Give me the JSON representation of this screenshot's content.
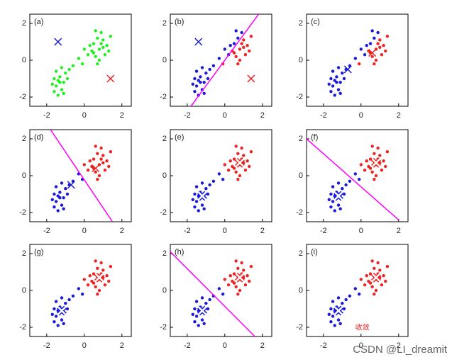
{
  "chart_data": [
    {
      "type": "scatter",
      "label": "(a)",
      "xlim": [
        -2.9,
        2.5
      ],
      "ylim": [
        -2.5,
        2.5
      ],
      "xticks": [
        -2,
        0,
        2
      ],
      "yticks": [
        -2,
        0,
        2
      ],
      "centroid_style": "plain",
      "series": [
        {
          "color": "#22ee22",
          "x": [
            -1.5,
            -1.3,
            -1.1,
            -1.6,
            -1.2,
            -1.0,
            -1.4,
            -1.7,
            -0.9,
            -1.3,
            -1.5,
            -1.1,
            -0.8,
            -1.6,
            -1.2,
            -1.4,
            -0.6,
            -0.3,
            -0.1,
            0.2,
            0.5,
            0.8,
            1.0,
            0.6,
            1.2,
            0.9,
            0.4,
            0.7,
            1.1,
            0.3,
            1.4,
            0.8,
            0.6,
            1.0,
            0.5,
            1.3,
            0.9,
            0.0,
            0.7
          ],
          "y": [
            -1.4,
            -0.9,
            -1.2,
            -1.0,
            -1.6,
            -0.7,
            -1.9,
            -1.3,
            -1.0,
            -1.2,
            -0.6,
            -1.8,
            -0.5,
            -1.7,
            -0.4,
            -1.1,
            -0.3,
            0.1,
            -0.2,
            0.3,
            0.9,
            0.6,
            1.1,
            0.2,
            0.8,
            1.5,
            0.5,
            1.2,
            0.3,
            0.8,
            1.3,
            0.0,
            1.6,
            0.7,
            0.4,
            0.5,
            0.9,
            0.6,
            -0.2
          ]
        }
      ],
      "centroids": [
        {
          "color": "#1a1ad8",
          "x": -1.4,
          "y": 1.0
        },
        {
          "color": "#ee2222",
          "x": 1.4,
          "y": -1.0
        }
      ]
    },
    {
      "type": "scatter",
      "label": "(b)",
      "xlim": [
        -2.9,
        2.5
      ],
      "ylim": [
        -2.5,
        2.5
      ],
      "xticks": [
        -2,
        0,
        2
      ],
      "yticks": [
        -2,
        0,
        2
      ],
      "centroid_style": "plain",
      "series": [
        {
          "color": "#1a1ad8",
          "x": [
            -1.5,
            -1.3,
            -1.1,
            -1.6,
            -1.2,
            -1.0,
            -1.4,
            -1.7,
            -0.9,
            -1.3,
            -1.5,
            -1.1,
            -0.8,
            -1.6,
            -1.2,
            -1.4,
            -0.6,
            -0.3,
            0.2,
            0.5,
            0.9,
            0.7,
            0.3,
            0.6,
            0.0
          ],
          "y": [
            -1.4,
            -0.9,
            -1.2,
            -1.0,
            -1.6,
            -0.7,
            -1.9,
            -1.3,
            -1.0,
            -1.2,
            -0.6,
            -1.8,
            -0.5,
            -1.7,
            -0.4,
            -1.1,
            -0.3,
            0.1,
            0.3,
            0.9,
            1.5,
            1.2,
            0.8,
            1.6,
            0.6
          ]
        },
        {
          "color": "#ee2222",
          "x": [
            -0.1,
            0.8,
            1.0,
            0.6,
            1.2,
            0.4,
            1.1,
            1.4,
            0.8,
            1.0,
            0.5,
            1.3,
            0.9,
            0.7
          ],
          "y": [
            -0.2,
            0.6,
            1.1,
            0.2,
            0.8,
            0.5,
            0.3,
            1.3,
            0.0,
            0.7,
            0.4,
            0.5,
            0.9,
            -0.2
          ]
        }
      ],
      "centroids": [
        {
          "color": "#1a1ad8",
          "x": -1.4,
          "y": 1.0
        },
        {
          "color": "#ee2222",
          "x": 1.4,
          "y": -1.0
        }
      ],
      "boundary": {
        "color": "#ff00ff",
        "x": [
          -1.8,
          1.8
        ],
        "y": [
          -2.5,
          2.5
        ]
      }
    },
    {
      "type": "scatter",
      "label": "(c)",
      "xlim": [
        -2.9,
        2.5
      ],
      "ylim": [
        -2.5,
        2.5
      ],
      "xticks": [
        -2,
        0,
        2
      ],
      "yticks": [
        -2,
        0,
        2
      ],
      "centroid_style": "plain",
      "series": [
        {
          "color": "#1a1ad8",
          "x": [
            -1.5,
            -1.3,
            -1.1,
            -1.6,
            -1.2,
            -1.0,
            -1.4,
            -1.7,
            -0.9,
            -1.3,
            -1.5,
            -1.1,
            -0.8,
            -1.6,
            -1.2,
            -1.4,
            -0.6,
            -0.3,
            0.2,
            0.5,
            0.9,
            0.7,
            0.3,
            0.6,
            0.0
          ],
          "y": [
            -1.4,
            -0.9,
            -1.2,
            -1.0,
            -1.6,
            -0.7,
            -1.9,
            -1.3,
            -1.0,
            -1.2,
            -0.6,
            -1.8,
            -0.5,
            -1.7,
            -0.4,
            -1.1,
            -0.3,
            0.1,
            0.3,
            0.9,
            1.5,
            1.2,
            0.8,
            1.6,
            0.6
          ]
        },
        {
          "color": "#ee2222",
          "x": [
            -0.1,
            0.8,
            1.0,
            0.6,
            1.2,
            0.4,
            1.1,
            1.4,
            0.8,
            1.0,
            0.5,
            1.3,
            0.9,
            0.7
          ],
          "y": [
            -0.2,
            0.6,
            1.1,
            0.2,
            0.8,
            0.5,
            0.3,
            1.3,
            0.0,
            0.7,
            0.4,
            0.5,
            0.9,
            -0.2
          ]
        }
      ],
      "centroids": [
        {
          "color": "#1a1ad8",
          "x": -0.7,
          "y": -0.5
        },
        {
          "color": "#ee2222",
          "x": 0.6,
          "y": 0.4
        }
      ]
    },
    {
      "type": "scatter",
      "label": "(d)",
      "xlim": [
        -2.9,
        2.5
      ],
      "ylim": [
        -2.5,
        2.5
      ],
      "xticks": [
        -2,
        0,
        2
      ],
      "yticks": [
        -2,
        0,
        2
      ],
      "centroid_style": "plain",
      "series": [
        {
          "color": "#1a1ad8",
          "x": [
            -1.5,
            -1.3,
            -1.1,
            -1.6,
            -1.2,
            -1.0,
            -1.4,
            -1.7,
            -0.9,
            -1.3,
            -1.5,
            -1.1,
            -0.8,
            -1.6,
            -1.2,
            -1.4,
            -0.6,
            -0.3,
            -0.1
          ],
          "y": [
            -1.4,
            -0.9,
            -1.2,
            -1.0,
            -1.6,
            -0.7,
            -1.9,
            -1.3,
            -1.0,
            -1.2,
            -0.6,
            -1.8,
            -0.5,
            -1.7,
            -0.4,
            -1.1,
            -0.3,
            0.1,
            -0.2
          ]
        },
        {
          "color": "#ee2222",
          "x": [
            0.2,
            0.5,
            0.8,
            1.0,
            0.6,
            1.2,
            0.9,
            0.4,
            0.7,
            1.1,
            0.3,
            1.4,
            0.8,
            0.6,
            1.0,
            0.5,
            1.3,
            0.9,
            0.0,
            0.7
          ],
          "y": [
            0.3,
            0.9,
            0.6,
            1.1,
            0.2,
            0.8,
            1.5,
            0.5,
            1.2,
            0.3,
            0.8,
            1.3,
            0.0,
            1.6,
            0.7,
            0.4,
            0.5,
            0.9,
            0.6,
            -0.2
          ]
        }
      ],
      "centroids": [
        {
          "color": "#1a1ad8",
          "x": -0.7,
          "y": -0.5
        },
        {
          "color": "#ee2222",
          "x": 0.6,
          "y": 0.4
        }
      ],
      "boundary": {
        "color": "#ff00ff",
        "x": [
          -1.8,
          1.5
        ],
        "y": [
          2.5,
          -2.5
        ]
      }
    },
    {
      "type": "scatter",
      "label": "(e)",
      "xlim": [
        -2.9,
        2.5
      ],
      "ylim": [
        -2.5,
        2.5
      ],
      "xticks": [
        -2,
        0,
        2
      ],
      "yticks": [
        -2,
        0,
        2
      ],
      "centroid_style": "outlined",
      "series": [
        {
          "color": "#1a1ad8",
          "x": [
            -1.5,
            -1.3,
            -1.1,
            -1.6,
            -1.2,
            -1.0,
            -1.4,
            -1.7,
            -0.9,
            -1.3,
            -1.5,
            -1.1,
            -0.8,
            -1.6,
            -1.2,
            -1.4,
            -0.6,
            -0.3,
            -0.1
          ],
          "y": [
            -1.4,
            -0.9,
            -1.2,
            -1.0,
            -1.6,
            -0.7,
            -1.9,
            -1.3,
            -1.0,
            -1.2,
            -0.6,
            -1.8,
            -0.5,
            -1.7,
            -0.4,
            -1.1,
            -0.3,
            0.1,
            -0.2
          ]
        },
        {
          "color": "#ee2222",
          "x": [
            0.2,
            0.5,
            0.8,
            1.0,
            0.6,
            1.2,
            0.9,
            0.4,
            0.7,
            1.1,
            0.3,
            1.4,
            0.8,
            0.6,
            1.0,
            0.5,
            1.3,
            0.9,
            0.0,
            0.7
          ],
          "y": [
            0.3,
            0.9,
            0.6,
            1.1,
            0.2,
            0.8,
            1.5,
            0.5,
            1.2,
            0.3,
            0.8,
            1.3,
            0.0,
            1.6,
            0.7,
            0.4,
            0.5,
            0.9,
            0.6,
            -0.2
          ]
        }
      ],
      "centroids": [
        {
          "color": "#1a1ad8",
          "x": -1.2,
          "y": -1.1
        },
        {
          "color": "#ee2222",
          "x": 0.8,
          "y": 0.7
        }
      ]
    },
    {
      "type": "scatter",
      "label": "(f)",
      "xlim": [
        -2.9,
        2.5
      ],
      "ylim": [
        -2.5,
        2.5
      ],
      "xticks": [
        -2,
        0,
        2
      ],
      "yticks": [
        -2,
        0,
        2
      ],
      "centroid_style": "outlined",
      "series": [
        {
          "color": "#1a1ad8",
          "x": [
            -1.5,
            -1.3,
            -1.1,
            -1.6,
            -1.2,
            -1.0,
            -1.4,
            -1.7,
            -0.9,
            -1.3,
            -1.5,
            -1.1,
            -0.8,
            -1.6,
            -1.2,
            -1.4,
            -0.6,
            -0.3,
            -0.1
          ],
          "y": [
            -1.4,
            -0.9,
            -1.2,
            -1.0,
            -1.6,
            -0.7,
            -1.9,
            -1.3,
            -1.0,
            -1.2,
            -0.6,
            -1.8,
            -0.5,
            -1.7,
            -0.4,
            -1.1,
            -0.3,
            0.1,
            -0.2
          ]
        },
        {
          "color": "#ee2222",
          "x": [
            0.2,
            0.5,
            0.8,
            1.0,
            0.6,
            1.2,
            0.9,
            0.4,
            0.7,
            1.1,
            0.3,
            1.4,
            0.8,
            0.6,
            1.0,
            0.5,
            1.3,
            0.9,
            0.0,
            0.7
          ],
          "y": [
            0.3,
            0.9,
            0.6,
            1.1,
            0.2,
            0.8,
            1.5,
            0.5,
            1.2,
            0.3,
            0.8,
            1.3,
            0.0,
            1.6,
            0.7,
            0.4,
            0.5,
            0.9,
            0.6,
            -0.2
          ]
        }
      ],
      "centroids": [
        {
          "color": "#1a1ad8",
          "x": -1.2,
          "y": -1.1
        },
        {
          "color": "#ee2222",
          "x": 0.8,
          "y": 0.7
        }
      ],
      "boundary": {
        "color": "#ff00ff",
        "x": [
          -2.9,
          2.0
        ],
        "y": [
          2.0,
          -2.4
        ]
      }
    },
    {
      "type": "scatter",
      "label": "(g)",
      "xlim": [
        -2.9,
        2.5
      ],
      "ylim": [
        -2.5,
        2.5
      ],
      "xticks": [
        -2,
        0,
        2
      ],
      "yticks": [
        -2,
        0,
        2
      ],
      "centroid_style": "outlined",
      "series": [
        {
          "color": "#1a1ad8",
          "x": [
            -1.5,
            -1.3,
            -1.1,
            -1.6,
            -1.2,
            -1.0,
            -1.4,
            -1.7,
            -0.9,
            -1.3,
            -1.5,
            -1.1,
            -0.8,
            -1.6,
            -1.2,
            -1.4,
            -0.6,
            -0.3,
            -0.1
          ],
          "y": [
            -1.4,
            -0.9,
            -1.2,
            -1.0,
            -1.6,
            -0.7,
            -1.9,
            -1.3,
            -1.0,
            -1.2,
            -0.6,
            -1.8,
            -0.5,
            -1.7,
            -0.4,
            -1.1,
            -0.3,
            0.1,
            -0.2
          ]
        },
        {
          "color": "#ee2222",
          "x": [
            0.2,
            0.5,
            0.8,
            1.0,
            0.6,
            1.2,
            0.9,
            0.4,
            0.7,
            1.1,
            0.3,
            1.4,
            0.8,
            0.6,
            1.0,
            0.5,
            1.3,
            0.9,
            0.0,
            0.7
          ],
          "y": [
            0.3,
            0.9,
            0.6,
            1.1,
            0.2,
            0.8,
            1.5,
            0.5,
            1.2,
            0.3,
            0.8,
            1.3,
            0.0,
            1.6,
            0.7,
            0.4,
            0.5,
            0.9,
            0.6,
            -0.2
          ]
        }
      ],
      "centroids": [
        {
          "color": "#1a1ad8",
          "x": -1.2,
          "y": -1.1
        },
        {
          "color": "#ee2222",
          "x": 0.8,
          "y": 0.7
        }
      ]
    },
    {
      "type": "scatter",
      "label": "(h)",
      "xlim": [
        -2.9,
        2.5
      ],
      "ylim": [
        -2.5,
        2.5
      ],
      "xticks": [
        -2,
        0,
        2
      ],
      "yticks": [
        -2,
        0,
        2
      ],
      "centroid_style": "outlined",
      "series": [
        {
          "color": "#1a1ad8",
          "x": [
            -1.5,
            -1.3,
            -1.1,
            -1.6,
            -1.2,
            -1.0,
            -1.4,
            -1.7,
            -0.9,
            -1.3,
            -1.5,
            -1.1,
            -0.8,
            -1.6,
            -1.2,
            -1.4,
            -0.6,
            -0.3,
            -0.1
          ],
          "y": [
            -1.4,
            -0.9,
            -1.2,
            -1.0,
            -1.6,
            -0.7,
            -1.9,
            -1.3,
            -1.0,
            -1.2,
            -0.6,
            -1.8,
            -0.5,
            -1.7,
            -0.4,
            -1.1,
            -0.3,
            0.1,
            -0.2
          ]
        },
        {
          "color": "#ee2222",
          "x": [
            0.2,
            0.5,
            0.8,
            1.0,
            0.6,
            1.2,
            0.9,
            0.4,
            0.7,
            1.1,
            0.3,
            1.4,
            0.8,
            0.6,
            1.0,
            0.5,
            1.3,
            0.9,
            0.0,
            0.7
          ],
          "y": [
            0.3,
            0.9,
            0.6,
            1.1,
            0.2,
            0.8,
            1.5,
            0.5,
            1.2,
            0.3,
            0.8,
            1.3,
            0.0,
            1.6,
            0.7,
            0.4,
            0.5,
            0.9,
            0.6,
            -0.2
          ]
        }
      ],
      "centroids": [
        {
          "color": "#1a1ad8",
          "x": -1.2,
          "y": -1.1
        },
        {
          "color": "#ee2222",
          "x": 0.8,
          "y": 0.7
        }
      ],
      "boundary": {
        "color": "#ff00ff",
        "x": [
          -2.9,
          1.6
        ],
        "y": [
          2.1,
          -2.5
        ]
      }
    },
    {
      "type": "scatter",
      "label": "(i)",
      "xlim": [
        -2.9,
        2.5
      ],
      "ylim": [
        -2.5,
        2.5
      ],
      "xticks": [
        -2,
        0,
        2
      ],
      "yticks": [
        -2,
        0,
        2
      ],
      "centroid_style": "outlined",
      "series": [
        {
          "color": "#1a1ad8",
          "x": [
            -1.5,
            -1.3,
            -1.1,
            -1.6,
            -1.2,
            -1.0,
            -1.4,
            -1.7,
            -0.9,
            -1.3,
            -1.5,
            -1.1,
            -0.8,
            -1.6,
            -1.2,
            -1.4,
            -0.6,
            -0.3,
            -0.1
          ],
          "y": [
            -1.4,
            -0.9,
            -1.2,
            -1.0,
            -1.6,
            -0.7,
            -1.9,
            -1.3,
            -1.0,
            -1.2,
            -0.6,
            -1.8,
            -0.5,
            -1.7,
            -0.4,
            -1.1,
            -0.3,
            0.1,
            -0.2
          ]
        },
        {
          "color": "#ee2222",
          "x": [
            0.2,
            0.5,
            0.8,
            1.0,
            0.6,
            1.2,
            0.9,
            0.4,
            0.7,
            1.1,
            0.3,
            1.4,
            0.8,
            0.6,
            1.0,
            0.5,
            1.3,
            0.9,
            0.0,
            0.7
          ],
          "y": [
            0.3,
            0.9,
            0.6,
            1.1,
            0.2,
            0.8,
            1.5,
            0.5,
            1.2,
            0.3,
            0.8,
            1.3,
            0.0,
            1.6,
            0.7,
            0.4,
            0.5,
            0.9,
            0.6,
            -0.2
          ]
        }
      ],
      "centroids": [
        {
          "color": "#1a1ad8",
          "x": -1.2,
          "y": -1.1
        },
        {
          "color": "#ee2222",
          "x": 0.8,
          "y": 0.7
        }
      ],
      "annotation": "收敛"
    }
  ],
  "watermark": "CSDN @LI_dreamit"
}
